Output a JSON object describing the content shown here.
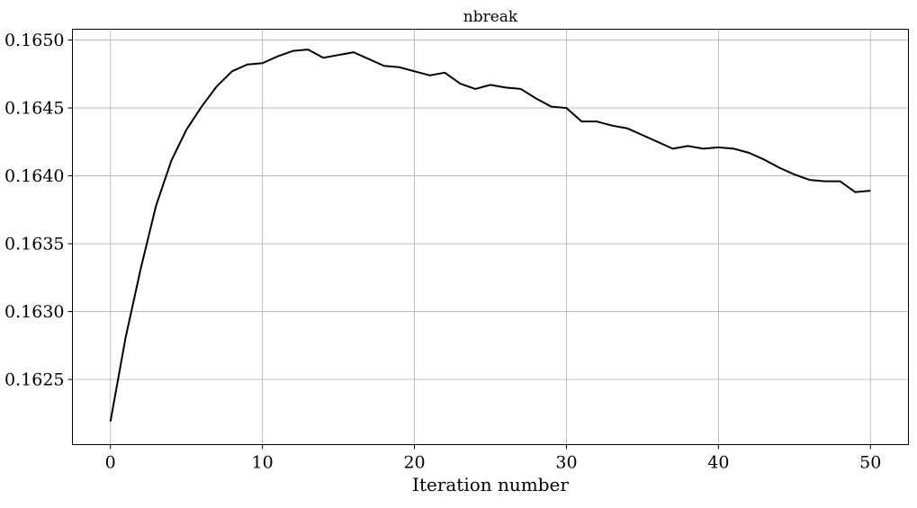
{
  "chart_data": {
    "type": "line",
    "title": "nbreak",
    "xlabel": "Iteration number",
    "ylabel": "",
    "xlim": [
      -2.5,
      52.5
    ],
    "ylim": [
      0.16202,
      0.16508
    ],
    "xticks": [
      0,
      10,
      20,
      30,
      40,
      50
    ],
    "xtick_labels": [
      "0",
      "10",
      "20",
      "30",
      "40",
      "50"
    ],
    "yticks": [
      0.1625,
      0.163,
      0.1635,
      0.164,
      0.1645,
      0.165
    ],
    "ytick_labels": [
      "0.1625",
      "0.1630",
      "0.1635",
      "0.1640",
      "0.1645",
      "0.1650"
    ],
    "grid": true,
    "line_color": "#000000",
    "grid_color": "#b0b0b0",
    "x": [
      0,
      1,
      2,
      3,
      4,
      5,
      6,
      7,
      8,
      9,
      10,
      11,
      12,
      13,
      14,
      15,
      16,
      17,
      18,
      19,
      20,
      21,
      22,
      23,
      24,
      25,
      26,
      27,
      28,
      29,
      30,
      31,
      32,
      33,
      34,
      35,
      36,
      37,
      38,
      39,
      40,
      41,
      42,
      43,
      44,
      45,
      46,
      47,
      48,
      49,
      50
    ],
    "series": [
      {
        "values": [
          0.16219,
          0.16281,
          0.16332,
          0.16378,
          0.16411,
          0.16434,
          0.16451,
          0.16466,
          0.16477,
          0.16482,
          0.16483,
          0.16488,
          0.16492,
          0.16493,
          0.16487,
          0.16489,
          0.16491,
          0.16486,
          0.16481,
          0.1648,
          0.16477,
          0.16474,
          0.16476,
          0.16468,
          0.16464,
          0.16467,
          0.16465,
          0.16464,
          0.16457,
          0.16451,
          0.1645,
          0.1644,
          0.1644,
          0.16437,
          0.16435,
          0.1643,
          0.16425,
          0.1642,
          0.16422,
          0.1642,
          0.16421,
          0.1642,
          0.16417,
          0.16412,
          0.16406,
          0.16401,
          0.16397,
          0.16396,
          0.16396,
          0.16388,
          0.16389
        ]
      }
    ]
  }
}
